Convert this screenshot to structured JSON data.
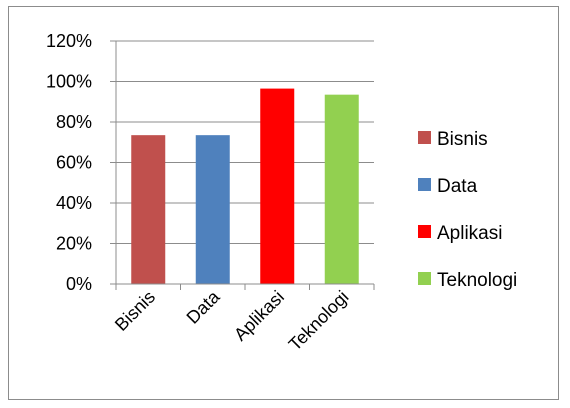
{
  "chart_data": {
    "type": "bar",
    "categories": [
      "Bisnis",
      "Data",
      "Aplikasi",
      "Teknologi"
    ],
    "values": [
      73.5,
      73.5,
      96.5,
      93.5
    ],
    "colors": [
      "#c0504d",
      "#4f81bd",
      "#ff0000",
      "#92d050"
    ],
    "ylim": [
      0,
      120
    ],
    "yticks": [
      "0%",
      "20%",
      "40%",
      "60%",
      "80%",
      "100%",
      "120%"
    ],
    "grid": true,
    "legend": {
      "placement": "right",
      "entries": [
        "Bisnis",
        "Data",
        "Aplikasi",
        "Teknologi"
      ]
    },
    "title": "",
    "xlabel": "",
    "ylabel": ""
  }
}
